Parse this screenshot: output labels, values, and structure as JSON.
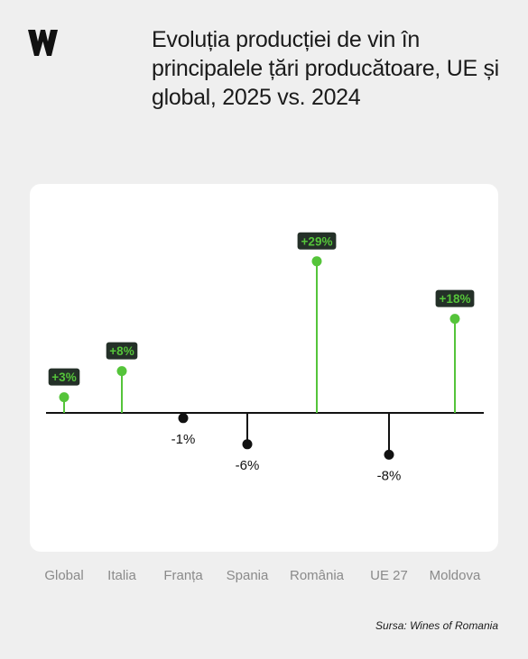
{
  "header": {
    "logo_icon": "wines-of-romania-logo-icon",
    "title": "Evoluția producției de vin în principalele țări producătoare, UE și global, 2025 vs. 2024"
  },
  "colors": {
    "positive": "#55c43a",
    "negative": "#111111",
    "label_bg": "#243028",
    "label_text": "#55c43a",
    "axis": "#111111",
    "category_text": "#8a8a8a"
  },
  "chart_data": {
    "type": "lollipop",
    "categories": [
      "Global",
      "Italia",
      "Franța",
      "Spania",
      "România",
      "UE 27",
      "Moldova"
    ],
    "values": [
      3,
      8,
      -1,
      -6,
      29,
      -8,
      18
    ],
    "data_labels": [
      "+3%",
      "+8%",
      "-1%",
      "-6%",
      "+29%",
      "-8%",
      "+18%"
    ],
    "baseline": 0,
    "grid": "vertical guide lines"
  },
  "footer": {
    "source": "Sursa: Wines of Romania"
  }
}
